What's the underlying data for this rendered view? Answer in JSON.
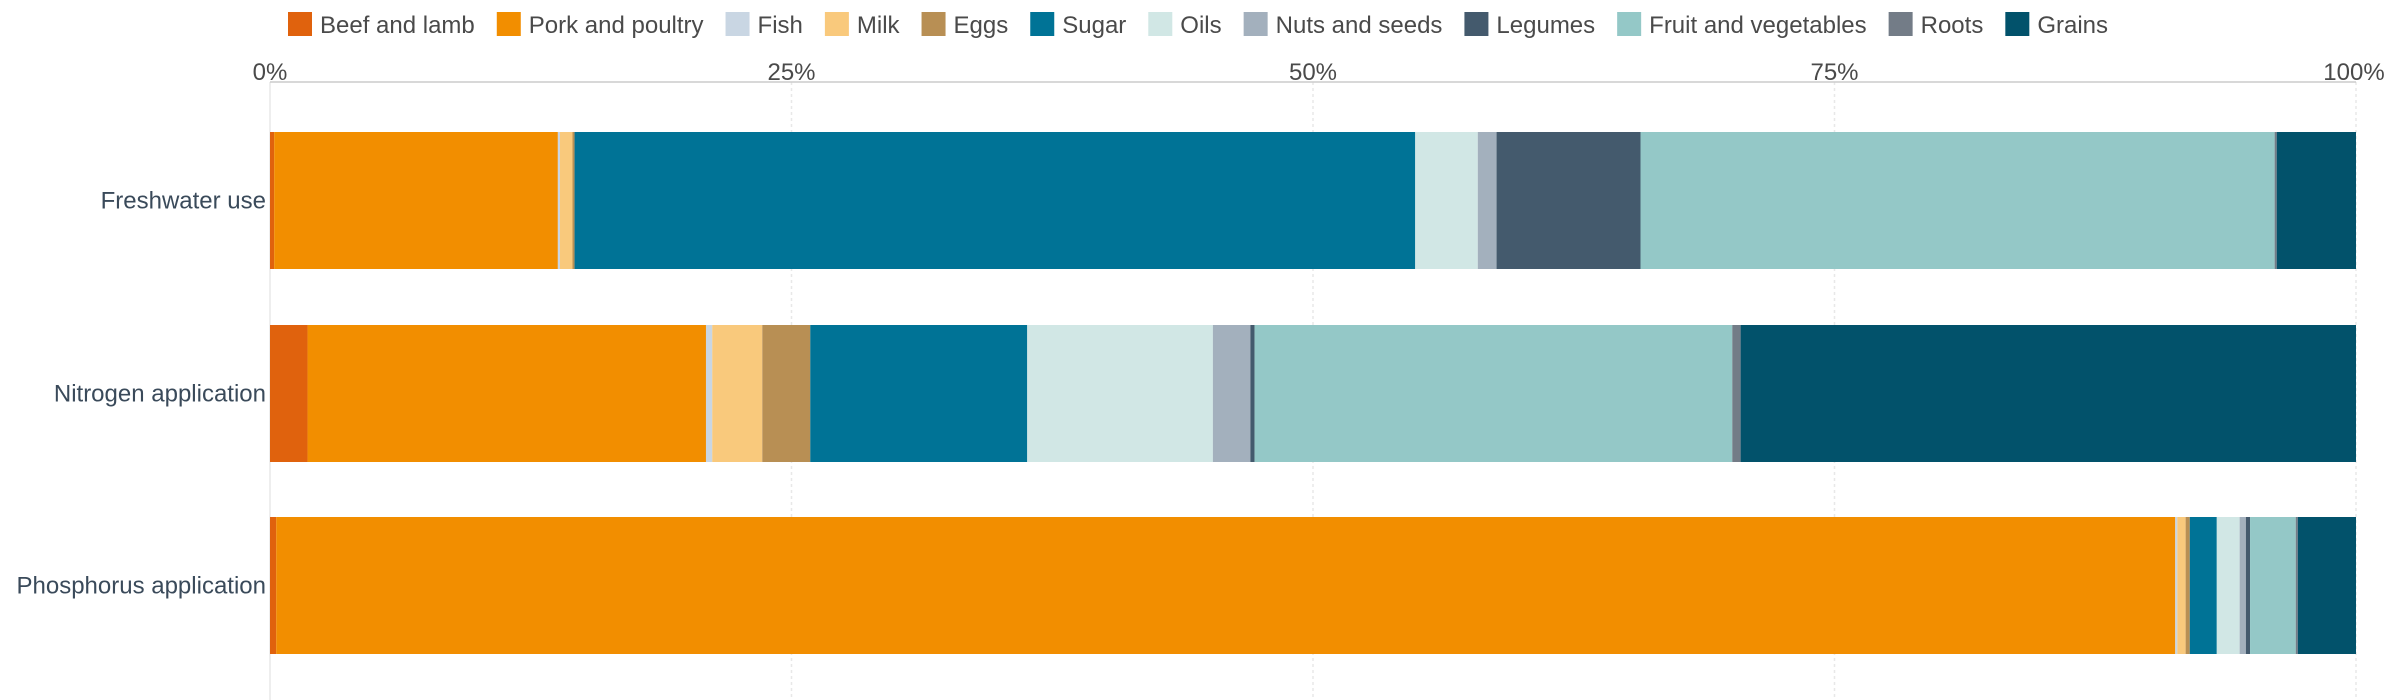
{
  "chart_data": {
    "type": "bar",
    "orientation": "horizontal",
    "stacked": true,
    "normalized": true,
    "grid": true,
    "legend_position": "top",
    "xlim": [
      0,
      100
    ],
    "x_ticks": [
      "0%",
      "25%",
      "50%",
      "75%",
      "100%"
    ],
    "categories": [
      "Freshwater use",
      "Nitrogen application",
      "Phosphorus application"
    ],
    "series": [
      {
        "name": "Beef and lamb",
        "color": "#e0620d",
        "values": [
          0.2,
          1.8,
          0.3
        ]
      },
      {
        "name": "Pork and poultry",
        "color": "#f28e00",
        "values": [
          13.6,
          19.1,
          91.4
        ]
      },
      {
        "name": "Fish",
        "color": "#c9d6e3",
        "values": [
          0.1,
          0.3,
          0.1
        ]
      },
      {
        "name": "Milk",
        "color": "#f9c97c",
        "values": [
          0.6,
          2.4,
          0.4
        ]
      },
      {
        "name": "Eggs",
        "color": "#b88f54",
        "values": [
          0.1,
          2.3,
          0.2
        ]
      },
      {
        "name": "Sugar",
        "color": "#007396",
        "values": [
          40.3,
          10.4,
          1.3
        ]
      },
      {
        "name": "Oils",
        "color": "#d1e7e5",
        "values": [
          3.0,
          8.9,
          1.1
        ]
      },
      {
        "name": "Nuts and seeds",
        "color": "#a3b0bd",
        "values": [
          0.9,
          1.8,
          0.3
        ]
      },
      {
        "name": "Legumes",
        "color": "#445a6d",
        "values": [
          6.9,
          0.2,
          0.2
        ]
      },
      {
        "name": "Fruit and vegetables",
        "color": "#94c8c7",
        "values": [
          30.4,
          22.9,
          2.2
        ]
      },
      {
        "name": "Roots",
        "color": "#737c87",
        "values": [
          0.1,
          0.4,
          0.1
        ]
      },
      {
        "name": "Grains",
        "color": "#02526b",
        "values": [
          3.8,
          29.5,
          2.8
        ]
      }
    ]
  }
}
